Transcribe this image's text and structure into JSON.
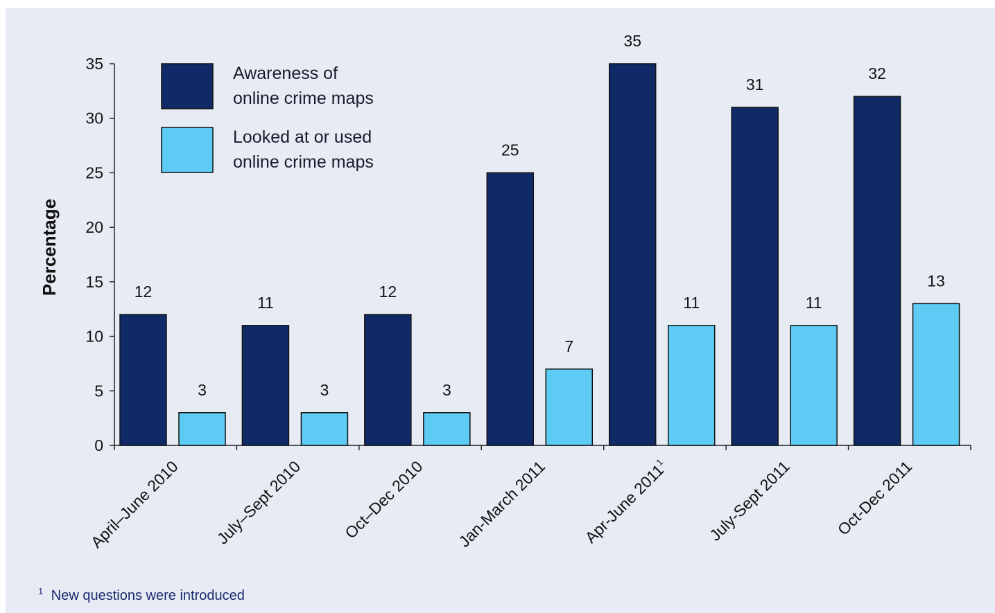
{
  "chart_data": {
    "type": "bar",
    "ylabel": "Percentage",
    "xlabel": "",
    "ylim": [
      0,
      35
    ],
    "yticks": [
      0,
      5,
      10,
      15,
      20,
      25,
      30,
      35
    ],
    "categories": [
      {
        "label": "April–June 2010",
        "sup": ""
      },
      {
        "label": "July–Sept 2010",
        "sup": ""
      },
      {
        "label": "Oct–Dec 2010",
        "sup": ""
      },
      {
        "label": "Jan-March 2011",
        "sup": ""
      },
      {
        "label": "Apr-June 2011",
        "sup": "1"
      },
      {
        "label": "July-Sept 2011",
        "sup": ""
      },
      {
        "label": "Oct-Dec 2011",
        "sup": ""
      }
    ],
    "series": [
      {
        "name": "Awareness of online crime maps",
        "legend_lines": [
          "Awareness of",
          "online crime maps"
        ],
        "color": "#102a68",
        "values": [
          12,
          11,
          12,
          25,
          35,
          31,
          32
        ]
      },
      {
        "name": "Looked at or used online crime maps",
        "legend_lines": [
          "Looked at or used",
          "online crime maps"
        ],
        "color": "#5ecbf5",
        "values": [
          3,
          3,
          3,
          7,
          11,
          11,
          13
        ]
      }
    ],
    "legend_position": "top-left",
    "grid": false
  },
  "footnote": {
    "marker": "1",
    "text": "New questions were introduced"
  }
}
